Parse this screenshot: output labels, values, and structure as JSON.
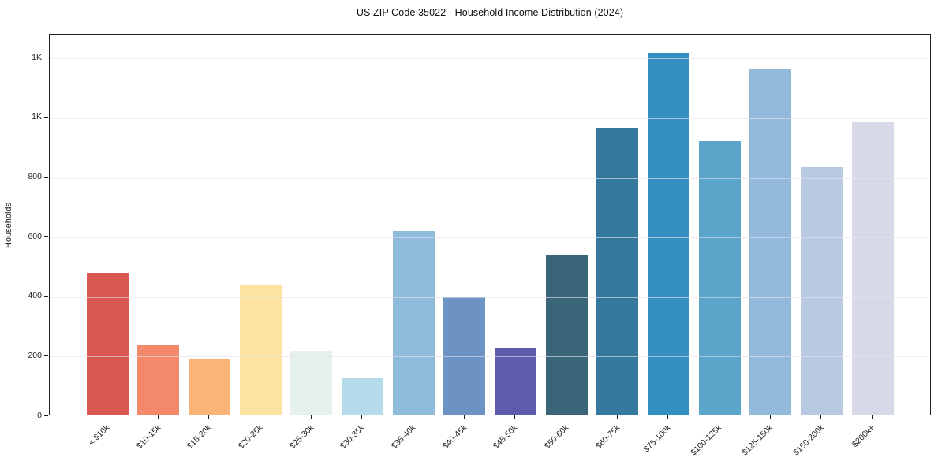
{
  "title": "US ZIP Code 35022 - Household Income Distribution (2024)",
  "chart_data": {
    "type": "bar",
    "title": "US ZIP Code 35022 - Household Income Distribution (2024)",
    "xlabel": "",
    "ylabel": "Households",
    "categories": [
      "< $10k",
      "$10-15k",
      "$15-20k",
      "$20-25k",
      "$25-30k",
      "$30-35k",
      "$35-40k",
      "$40-45k",
      "$45-50k",
      "$50-60k",
      "$60-75k",
      "$75-100k",
      "$100-125k",
      "$125-150k",
      "$150-200k",
      "$200k+"
    ],
    "values": [
      475,
      232,
      189,
      437,
      214,
      121,
      616,
      393,
      221,
      534,
      961,
      1215,
      919,
      1160,
      830,
      982
    ],
    "bar_colors": [
      "#d85750",
      "#f3896a",
      "#fbb377",
      "#fce3a2",
      "#e6f1ef",
      "#b4dbe9",
      "#90bcdb",
      "#6c93c4",
      "#5d5caa",
      "#3a6579",
      "#36799e",
      "#338fc1",
      "#5ba4ca",
      "#93bada",
      "#bac9e2",
      "#d7d9e8"
    ],
    "ylim": [
      0,
      1280
    ],
    "yticks": [
      {
        "value": 0,
        "label": "0"
      },
      {
        "value": 200,
        "label": "200"
      },
      {
        "value": 400,
        "label": "400"
      },
      {
        "value": 600,
        "label": "600"
      },
      {
        "value": 800,
        "label": "800"
      },
      {
        "value": 1000,
        "label": "1K"
      },
      {
        "value": 1200,
        "label": "1K"
      }
    ],
    "grid": "horizontal-on-top",
    "legend": "none",
    "background_color": "#ffffff",
    "axis_color": "#1f1f1f",
    "x_tick_rotation_deg": 45
  }
}
